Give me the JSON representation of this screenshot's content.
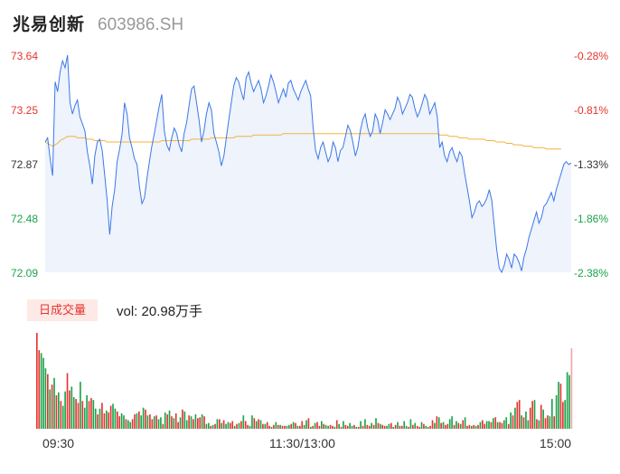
{
  "header": {
    "name": "兆易创新",
    "code": "603986.SH"
  },
  "price_axis": [
    "73.64",
    "73.25",
    "72.87",
    "72.48",
    "72.09"
  ],
  "pct_axis": [
    "-0.28%",
    "-0.81%",
    "-1.33%",
    "-1.86%",
    "-2.38%"
  ],
  "volume": {
    "badge": "日成交量",
    "text": "vol: 20.98万手"
  },
  "time_axis": [
    "09:30",
    "11:30/13:00",
    "15:00"
  ],
  "colors": {
    "up": "#e5342f",
    "down": "#1aa34a",
    "price_line": "#3b78e7",
    "avg_line": "#f2b33d",
    "area": "#eef3fc"
  },
  "chart_data": [
    {
      "type": "line",
      "title": "",
      "xlabel": "",
      "ylabel": "",
      "ylim": [
        72.09,
        73.64
      ],
      "x_ticks": [
        "09:30",
        "11:30/13:00",
        "15:00"
      ],
      "series": [
        {
          "name": "price",
          "values": [
            73.02,
            73.05,
            72.9,
            72.78,
            73.45,
            73.38,
            73.52,
            73.6,
            73.55,
            73.64,
            73.3,
            73.22,
            73.28,
            73.32,
            73.2,
            73.15,
            73.1,
            72.95,
            72.85,
            72.72,
            72.92,
            73.02,
            73.04,
            72.96,
            72.78,
            72.6,
            72.36,
            72.56,
            72.68,
            72.88,
            72.97,
            73.08,
            73.3,
            73.22,
            73.05,
            72.98,
            72.9,
            72.86,
            72.7,
            72.58,
            72.62,
            72.76,
            72.88,
            72.99,
            73.08,
            73.18,
            73.28,
            73.36,
            73.1,
            73.0,
            72.96,
            73.05,
            73.12,
            73.08,
            73.0,
            72.95,
            73.08,
            73.16,
            73.28,
            73.4,
            73.42,
            73.3,
            73.18,
            73.02,
            73.1,
            73.22,
            73.3,
            73.25,
            73.08,
            73.02,
            72.95,
            72.85,
            72.92,
            73.05,
            73.18,
            73.3,
            73.42,
            73.48,
            73.45,
            73.38,
            73.32,
            73.48,
            73.52,
            73.44,
            73.38,
            73.42,
            73.46,
            73.4,
            73.3,
            73.35,
            73.42,
            73.5,
            73.45,
            73.38,
            73.3,
            73.35,
            73.4,
            73.34,
            73.44,
            73.46,
            73.4,
            73.36,
            73.32,
            73.38,
            73.42,
            73.46,
            73.4,
            73.35,
            73.12,
            72.96,
            72.9,
            72.98,
            73.02,
            72.95,
            72.88,
            72.92,
            73.02,
            72.98,
            72.88,
            72.96,
            72.98,
            73.06,
            73.14,
            73.1,
            73.02,
            72.92,
            72.98,
            73.1,
            73.18,
            73.22,
            73.12,
            73.06,
            73.1,
            73.22,
            73.18,
            73.08,
            73.16,
            73.25,
            73.22,
            73.18,
            73.22,
            73.26,
            73.34,
            73.3,
            73.22,
            73.26,
            73.3,
            73.36,
            73.34,
            73.26,
            73.2,
            73.24,
            73.3,
            73.36,
            73.32,
            73.22,
            73.26,
            73.3,
            73.2,
            72.98,
            73.02,
            72.92,
            72.88,
            72.95,
            72.98,
            72.92,
            72.88,
            72.95,
            72.92,
            72.8,
            72.7,
            72.6,
            72.48,
            72.52,
            72.58,
            72.6,
            72.56,
            72.58,
            72.62,
            72.68,
            72.6,
            72.42,
            72.25,
            72.12,
            72.09,
            72.14,
            72.22,
            72.18,
            72.12,
            72.22,
            72.2,
            72.16,
            72.1,
            72.2,
            72.26,
            72.34,
            72.4,
            72.46,
            72.52,
            72.44,
            72.48,
            72.56,
            72.58,
            72.62,
            72.66,
            72.6,
            72.68,
            72.74,
            72.8,
            72.86,
            72.88,
            72.86,
            72.87
          ]
        },
        {
          "name": "avg",
          "values": [
            73.02,
            73.01,
            73.0,
            72.99,
            73.0,
            73.01,
            73.03,
            73.04,
            73.05,
            73.06,
            73.06,
            73.06,
            73.06,
            73.05,
            73.05,
            73.05,
            73.05,
            73.04,
            73.04,
            73.04,
            73.03,
            73.03,
            73.03,
            73.03,
            73.03,
            73.02,
            73.02,
            73.02,
            73.02,
            73.02,
            73.02,
            73.02,
            73.02,
            73.02,
            73.02,
            73.02,
            73.02,
            73.02,
            73.02,
            73.02,
            73.02,
            73.02,
            73.02,
            73.02,
            73.02,
            73.02,
            73.02,
            73.03,
            73.03,
            73.03,
            73.03,
            73.03,
            73.03,
            73.03,
            73.03,
            73.03,
            73.03,
            73.03,
            73.03,
            73.04,
            73.04,
            73.04,
            73.04,
            73.04,
            73.04,
            73.04,
            73.04,
            73.05,
            73.05,
            73.05,
            73.05,
            73.05,
            73.05,
            73.05,
            73.05,
            73.05,
            73.05,
            73.06,
            73.06,
            73.06,
            73.06,
            73.06,
            73.06,
            73.06,
            73.07,
            73.07,
            73.07,
            73.07,
            73.07,
            73.07,
            73.07,
            73.07,
            73.07,
            73.07,
            73.07,
            73.07,
            73.08,
            73.08,
            73.08,
            73.08,
            73.08,
            73.08,
            73.08,
            73.08,
            73.08,
            73.08,
            73.08,
            73.08,
            73.08,
            73.08,
            73.08,
            73.08,
            73.08,
            73.08,
            73.08,
            73.08,
            73.08,
            73.08,
            73.08,
            73.08,
            73.08,
            73.08,
            73.08,
            73.08,
            73.08,
            73.08,
            73.08,
            73.08,
            73.08,
            73.08,
            73.08,
            73.08,
            73.08,
            73.08,
            73.08,
            73.08,
            73.08,
            73.08,
            73.08,
            73.08,
            73.08,
            73.08,
            73.08,
            73.08,
            73.08,
            73.08,
            73.08,
            73.08,
            73.08,
            73.08,
            73.08,
            73.08,
            73.08,
            73.08,
            73.08,
            73.08,
            73.08,
            73.08,
            73.08,
            73.07,
            73.07,
            73.07,
            73.07,
            73.06,
            73.06,
            73.06,
            73.06,
            73.05,
            73.05,
            73.05,
            73.05,
            73.04,
            73.04,
            73.04,
            73.04,
            73.04,
            73.04,
            73.04,
            73.03,
            73.03,
            73.03,
            73.03,
            73.02,
            73.02,
            73.02,
            73.02,
            73.01,
            73.01,
            73.01,
            73.0,
            73.0,
            73.0,
            73.0,
            72.99,
            72.99,
            72.99,
            72.99,
            72.98,
            72.98,
            72.98,
            72.98,
            72.98,
            72.97,
            72.97,
            72.97,
            72.97,
            72.97,
            72.97,
            72.97
          ]
        }
      ]
    },
    {
      "type": "bar",
      "title": "",
      "xlabel": "",
      "ylabel": "",
      "ylim": [
        0,
        100
      ],
      "x_ticks": [
        "09:30",
        "11:30/13:00",
        "15:00"
      ],
      "values": [
        100,
        82,
        79,
        74,
        63,
        57,
        41,
        46,
        53,
        35,
        38,
        29,
        24,
        39,
        58,
        40,
        44,
        33,
        31,
        27,
        49,
        29,
        22,
        35,
        29,
        32,
        30,
        21,
        15,
        21,
        27,
        16,
        19,
        17,
        24,
        26,
        21,
        18,
        13,
        16,
        14,
        10,
        9,
        7,
        10,
        15,
        16,
        18,
        14,
        22,
        20,
        14,
        15,
        10,
        13,
        14,
        10,
        12,
        5,
        17,
        15,
        19,
        13,
        11,
        16,
        7,
        12,
        20,
        18,
        9,
        14,
        13,
        10,
        15,
        11,
        12,
        15,
        13,
        5,
        6,
        3,
        4,
        5,
        10,
        10,
        6,
        9,
        5,
        7,
        6,
        8,
        3,
        5,
        6,
        8,
        14,
        8,
        4,
        3,
        14,
        11,
        8,
        10,
        9,
        5,
        5,
        7,
        3,
        2,
        4,
        7,
        4,
        4,
        3,
        3,
        3,
        4,
        5,
        7,
        6,
        3,
        3,
        8,
        4,
        9,
        11,
        2,
        3,
        6,
        7,
        3,
        8,
        5,
        4,
        3,
        4,
        3,
        2,
        9,
        5,
        2,
        8,
        4,
        3,
        6,
        3,
        4,
        2,
        2,
        8,
        3,
        10,
        4,
        3,
        6,
        4,
        11,
        6,
        5,
        4,
        3,
        3,
        5,
        6,
        2,
        4,
        7,
        3,
        3,
        8,
        3,
        2,
        10,
        4,
        6,
        3,
        2,
        7,
        5,
        3,
        2,
        3,
        9,
        6,
        13,
        12,
        6,
        7,
        4,
        5,
        10,
        13,
        4,
        8,
        6,
        5,
        9,
        12,
        3,
        4,
        3,
        4,
        3,
        4,
        7,
        9,
        5,
        8,
        8,
        7,
        11,
        12,
        7,
        7,
        6,
        9,
        12,
        5,
        17,
        14,
        22,
        28,
        30,
        14,
        12,
        18,
        9,
        22,
        29,
        30,
        10,
        9,
        25,
        20,
        11,
        14,
        13,
        31,
        13,
        35,
        49,
        47,
        28,
        30,
        59,
        56,
        84
      ],
      "directions": [
        "up",
        "up",
        "down",
        "down",
        "down",
        "up",
        "down",
        "up",
        "down",
        "up",
        "down",
        "up",
        "down",
        "down",
        "up",
        "up",
        "down",
        "down",
        "up",
        "up",
        "down",
        "up",
        "down",
        "down",
        "up",
        "up",
        "down",
        "down",
        "up",
        "down",
        "up",
        "up",
        "down",
        "up",
        "up",
        "down",
        "down",
        "up",
        "up",
        "down",
        "down",
        "up",
        "down",
        "down",
        "up",
        "up",
        "down",
        "up",
        "down",
        "down",
        "up",
        "down",
        "up",
        "up",
        "down",
        "up",
        "down",
        "down",
        "up",
        "down",
        "up",
        "down",
        "up",
        "down",
        "up",
        "up",
        "down",
        "up",
        "down",
        "down",
        "up",
        "down",
        "up",
        "down",
        "up",
        "up",
        "down",
        "up",
        "down",
        "down",
        "up",
        "down",
        "up",
        "down",
        "up",
        "down",
        "up",
        "down",
        "down",
        "up",
        "up",
        "down",
        "up",
        "down",
        "up",
        "down",
        "up",
        "up",
        "down",
        "down",
        "up",
        "down",
        "up",
        "down",
        "up",
        "down",
        "up",
        "up",
        "down",
        "up",
        "down",
        "up",
        "down",
        "up",
        "up",
        "down",
        "down",
        "up",
        "down",
        "up",
        "down",
        "up",
        "up",
        "down",
        "down",
        "up",
        "down",
        "up",
        "down",
        "up",
        "up",
        "down",
        "up",
        "down",
        "down",
        "up",
        "up",
        "down",
        "up",
        "down",
        "up",
        "down",
        "up",
        "up",
        "down",
        "down",
        "up",
        "down",
        "up",
        "down",
        "up",
        "down",
        "up",
        "up",
        "down",
        "up",
        "down",
        "up",
        "down",
        "up",
        "up",
        "down",
        "down",
        "up",
        "down",
        "up",
        "down",
        "up",
        "up",
        "down",
        "down",
        "up",
        "down",
        "up",
        "down",
        "up",
        "up",
        "down",
        "up",
        "down",
        "down",
        "up",
        "up",
        "down",
        "up",
        "down",
        "up",
        "down",
        "up",
        "up",
        "down",
        "down",
        "up",
        "down",
        "up",
        "down",
        "up",
        "down",
        "up",
        "up",
        "down",
        "up",
        "down",
        "up",
        "down",
        "up",
        "up",
        "down",
        "down",
        "up",
        "down",
        "up",
        "down",
        "up",
        "up",
        "down",
        "down",
        "up",
        "down",
        "up",
        "down",
        "up",
        "up",
        "down",
        "up",
        "down",
        "down",
        "up",
        "up",
        "down",
        "up",
        "down",
        "up",
        "down",
        "up",
        "up",
        "down",
        "down",
        "up",
        "down",
        "down",
        "up",
        "up"
      ]
    }
  ]
}
